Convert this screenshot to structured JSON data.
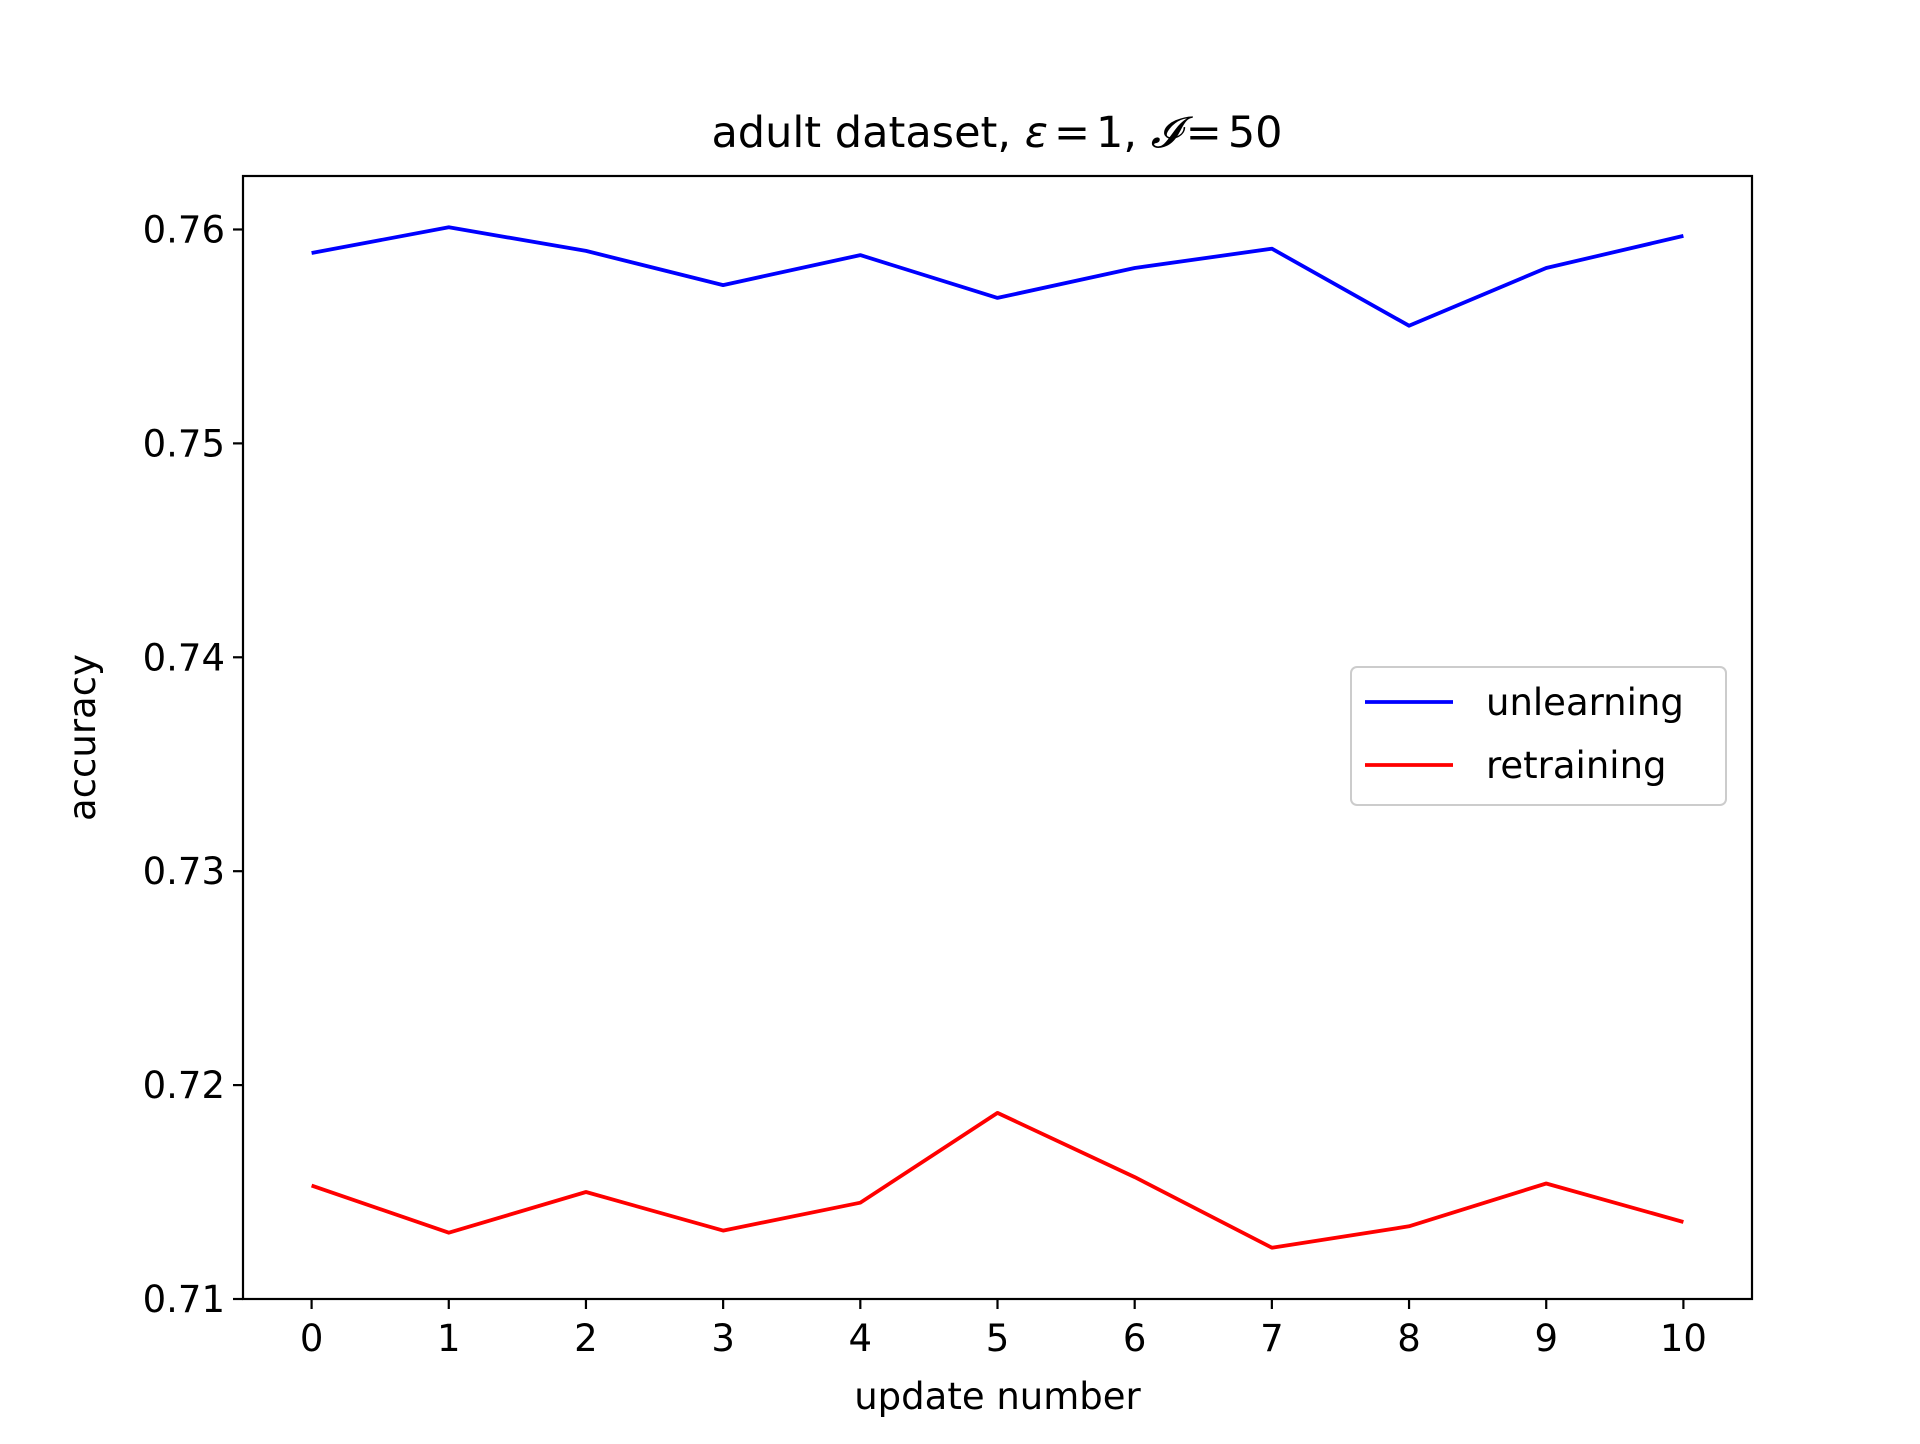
{
  "chart_data": {
    "type": "line",
    "title": {
      "prefix": "adult dataset, ",
      "epsilon_symbol": "ε",
      "epsilon_value": "1",
      "iter_symbol": "𝓘",
      "iter_value": "50",
      "sep": ", ",
      "eq": "="
    },
    "xlabel": "update number",
    "ylabel": "accuracy",
    "x": [
      0,
      1,
      2,
      3,
      4,
      5,
      6,
      7,
      8,
      9,
      10
    ],
    "xticks": [
      "0",
      "1",
      "2",
      "3",
      "4",
      "5",
      "6",
      "7",
      "8",
      "9",
      "10"
    ],
    "yticks": [
      0.71,
      0.72,
      0.73,
      0.74,
      0.75,
      0.76
    ],
    "ytick_labels": [
      "0.71",
      "0.72",
      "0.73",
      "0.74",
      "0.75",
      "0.76"
    ],
    "xlim": [
      -0.5,
      10.5
    ],
    "ylim": [
      0.71,
      0.7625
    ],
    "grid": false,
    "legend_position": "center-right",
    "series": [
      {
        "name": "unlearning",
        "color": "#0000ff",
        "values": [
          0.7589,
          0.7601,
          0.759,
          0.7574,
          0.7588,
          0.7568,
          0.7582,
          0.7591,
          0.7555,
          0.7582,
          0.7597
        ]
      },
      {
        "name": "retraining",
        "color": "#ff0000",
        "values": [
          0.7153,
          0.7131,
          0.715,
          0.7132,
          0.7145,
          0.7187,
          0.7157,
          0.7124,
          0.7134,
          0.7154,
          0.7136
        ]
      }
    ]
  }
}
